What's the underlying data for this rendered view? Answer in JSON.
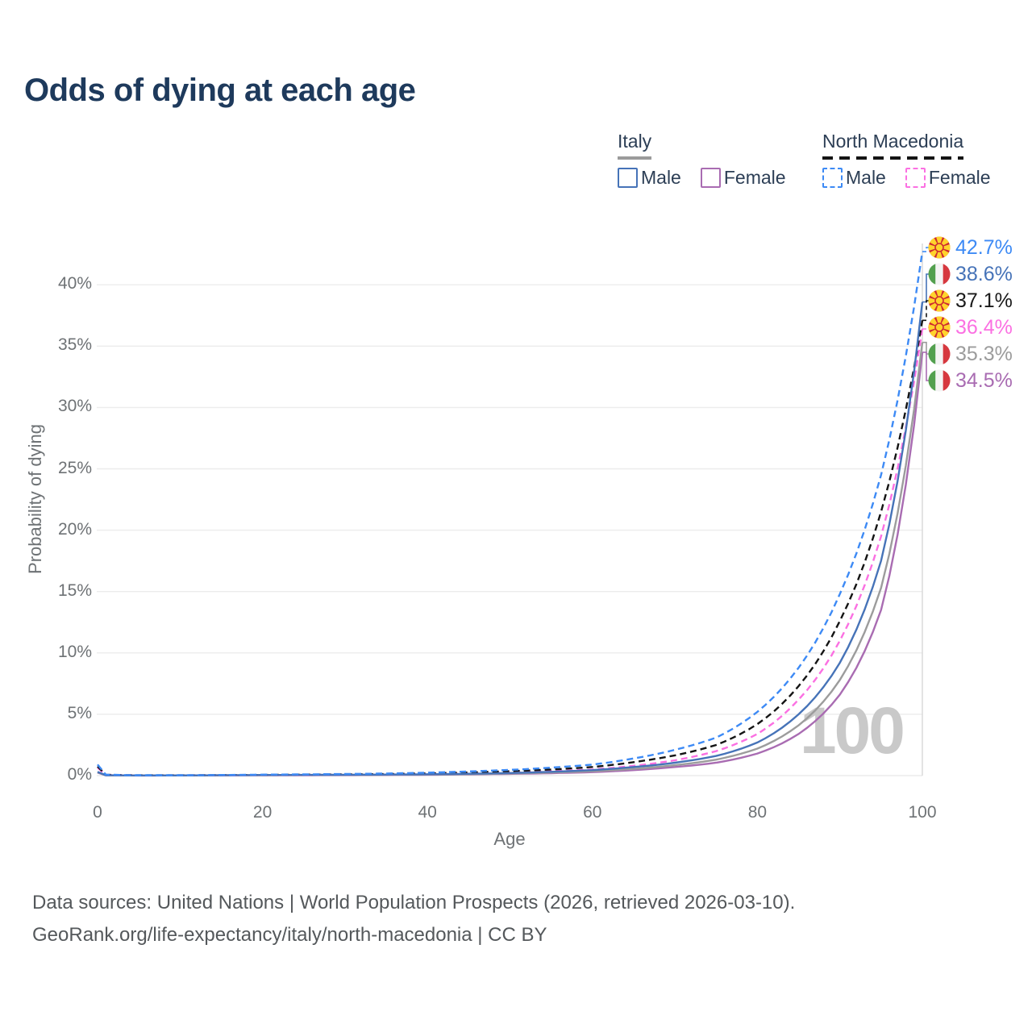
{
  "title": "Odds of dying at each age",
  "legend": {
    "groups": [
      {
        "label": "Italy",
        "line_style": "solid",
        "underline_color": "#9b9b9b",
        "items": [
          {
            "label": "Male",
            "color": "#4673b8",
            "dashed": false
          },
          {
            "label": "Female",
            "color": "#a96cb2",
            "dashed": false
          }
        ]
      },
      {
        "label": "North Macedonia",
        "line_style": "dashed",
        "underline_color": "#141414",
        "items": [
          {
            "label": "Male",
            "color": "#3d8af5",
            "dashed": true
          },
          {
            "label": "Female",
            "color": "#fb70e2",
            "dashed": true
          }
        ]
      }
    ]
  },
  "y_axis": {
    "title": "Probability of dying",
    "ticks": [
      "0%",
      "5%",
      "10%",
      "15%",
      "20%",
      "25%",
      "30%",
      "35%",
      "40%"
    ]
  },
  "x_axis": {
    "title": "Age",
    "ticks": [
      "0",
      "20",
      "40",
      "60",
      "80",
      "100"
    ]
  },
  "hover_age_indicator": "100",
  "end_labels": [
    {
      "value": "42.7%",
      "flag": "north-macedonia",
      "color": "#3d8af5",
      "series": "North Macedonia Male"
    },
    {
      "value": "38.6%",
      "flag": "italy",
      "color": "#4673b8",
      "series": "Italy Male"
    },
    {
      "value": "37.1%",
      "flag": "north-macedonia",
      "color": "#1a1a1a",
      "series": "North Macedonia"
    },
    {
      "value": "36.4%",
      "flag": "north-macedonia",
      "color": "#fb70e2",
      "series": "North Macedonia Female"
    },
    {
      "value": "35.3%",
      "flag": "italy",
      "color": "#9c9c9c",
      "series": "Italy"
    },
    {
      "value": "34.5%",
      "flag": "italy",
      "color": "#a96cb2",
      "series": "Italy Female"
    }
  ],
  "footer": {
    "line1": "Data sources: United Nations | World Population Prospects (2026, retrieved 2026-03-10).",
    "line2": "GeoRank.org/life-expectancy/italy/north-macedonia | CC BY"
  },
  "chart_data": {
    "type": "line",
    "title": "Odds of dying at each age",
    "xlabel": "Age",
    "ylabel": "Probability of dying",
    "xlim": [
      0,
      100
    ],
    "ylim_pct": [
      0,
      44
    ],
    "x_ticks": [
      0,
      20,
      40,
      60,
      80,
      100
    ],
    "y_ticks_pct": [
      0,
      5,
      10,
      15,
      20,
      25,
      30,
      35,
      40
    ],
    "grid": "horizontal",
    "legend_position": "top-right",
    "hover_crosshair_age": 100,
    "ages": [
      0,
      1,
      5,
      10,
      15,
      20,
      25,
      30,
      35,
      40,
      45,
      50,
      55,
      60,
      65,
      70,
      75,
      80,
      85,
      90,
      95,
      100
    ],
    "series": [
      {
        "name": "North Macedonia Male",
        "country": "North Macedonia",
        "sex": "Male",
        "style": "dashed",
        "color": "#3d8af5",
        "end_value_pct": 42.7,
        "values_pct": [
          0.9,
          0.08,
          0.03,
          0.03,
          0.05,
          0.08,
          0.1,
          0.13,
          0.17,
          0.24,
          0.34,
          0.47,
          0.65,
          0.9,
          1.4,
          2.1,
          3.1,
          5.2,
          8.8,
          14.8,
          24.5,
          42.7
        ]
      },
      {
        "name": "Italy Male",
        "country": "Italy",
        "sex": "Male",
        "style": "solid",
        "color": "#4673b8",
        "end_value_pct": 38.6,
        "values_pct": [
          0.3,
          0.03,
          0.012,
          0.015,
          0.03,
          0.05,
          0.06,
          0.07,
          0.085,
          0.11,
          0.15,
          0.21,
          0.31,
          0.45,
          0.7,
          1.05,
          1.6,
          2.7,
          5.0,
          9.2,
          17.5,
          38.6
        ]
      },
      {
        "name": "North Macedonia",
        "country": "North Macedonia",
        "sex": "Both",
        "style": "dashed",
        "color": "#141414",
        "end_value_pct": 37.1,
        "values_pct": [
          0.75,
          0.07,
          0.025,
          0.025,
          0.04,
          0.06,
          0.08,
          0.1,
          0.13,
          0.18,
          0.26,
          0.36,
          0.5,
          0.7,
          1.1,
          1.65,
          2.5,
          4.2,
          7.3,
          12.6,
          21.5,
          37.1
        ]
      },
      {
        "name": "North Macedonia Female",
        "country": "North Macedonia",
        "sex": "Female",
        "style": "dashed",
        "color": "#fb70e2",
        "end_value_pct": 36.4,
        "values_pct": [
          0.65,
          0.06,
          0.02,
          0.02,
          0.03,
          0.045,
          0.055,
          0.07,
          0.09,
          0.13,
          0.18,
          0.25,
          0.36,
          0.5,
          0.8,
          1.25,
          2.0,
          3.4,
          6.2,
          11.0,
          19.5,
          36.4
        ]
      },
      {
        "name": "Italy",
        "country": "Italy",
        "sex": "Both",
        "style": "solid",
        "color": "#9c9c9c",
        "end_value_pct": 35.3,
        "values_pct": [
          0.27,
          0.025,
          0.01,
          0.013,
          0.024,
          0.04,
          0.05,
          0.055,
          0.07,
          0.09,
          0.12,
          0.17,
          0.25,
          0.36,
          0.55,
          0.85,
          1.3,
          2.2,
          4.1,
          7.8,
          15.3,
          35.3
        ]
      },
      {
        "name": "Italy Female",
        "country": "Italy",
        "sex": "Female",
        "style": "solid",
        "color": "#a96cb2",
        "end_value_pct": 34.5,
        "values_pct": [
          0.25,
          0.02,
          0.009,
          0.011,
          0.018,
          0.03,
          0.035,
          0.04,
          0.055,
          0.07,
          0.1,
          0.14,
          0.2,
          0.28,
          0.45,
          0.7,
          1.05,
          1.8,
          3.4,
          6.6,
          13.5,
          34.5
        ]
      }
    ]
  }
}
